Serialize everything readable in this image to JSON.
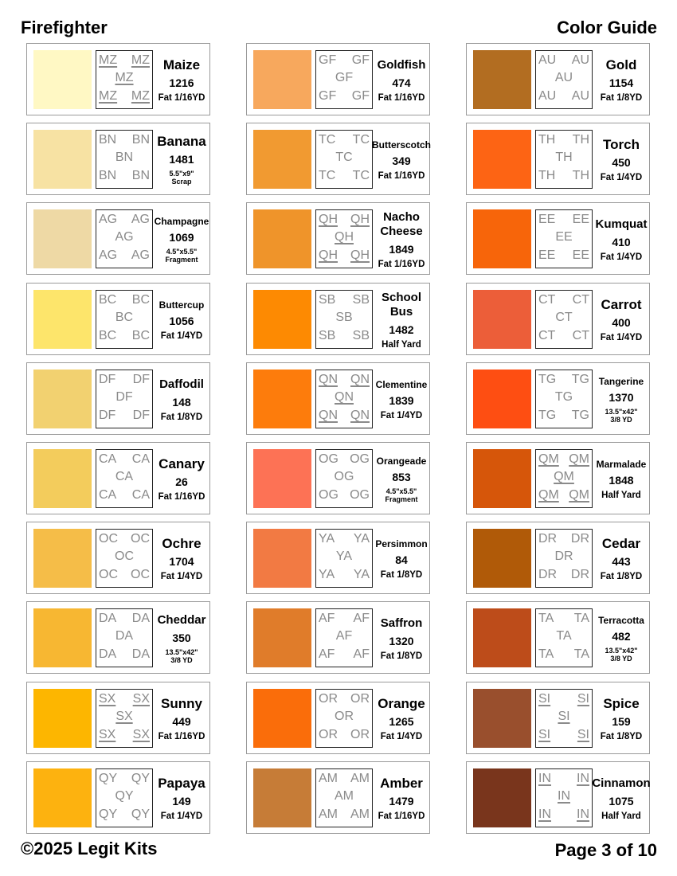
{
  "header": {
    "left": "Firefighter",
    "right": "Color Guide"
  },
  "footer": {
    "left": "©2025 Legit Kits",
    "right": "Page 3 of 10"
  },
  "columns": [
    [
      {
        "code": "MZ",
        "underlined": true,
        "name": [
          "Maize"
        ],
        "number": "1216",
        "detail": [
          "Fat 1/16YD"
        ],
        "color": "#fff8c4"
      },
      {
        "code": "BN",
        "underlined": false,
        "name": [
          "Banana"
        ],
        "number": "1481",
        "detail": [
          "5.5\"x9\"",
          "Scrap"
        ],
        "color": "#f7e2a3"
      },
      {
        "code": "AG",
        "underlined": false,
        "name": [
          "Champagne"
        ],
        "number": "1069",
        "detail": [
          "4.5\"x5.5\"",
          "Fragment"
        ],
        "color": "#eed9a5"
      },
      {
        "code": "BC",
        "underlined": false,
        "name": [
          "Buttercup"
        ],
        "number": "1056",
        "detail": [
          "Fat 1/4YD"
        ],
        "color": "#fde56b"
      },
      {
        "code": "DF",
        "underlined": false,
        "name": [
          "Daffodil"
        ],
        "number": "148",
        "detail": [
          "Fat 1/8YD"
        ],
        "color": "#f2d170"
      },
      {
        "code": "CA",
        "underlined": false,
        "name": [
          "Canary"
        ],
        "number": "26",
        "detail": [
          "Fat 1/16YD"
        ],
        "color": "#f3cc5c"
      },
      {
        "code": "OC",
        "underlined": false,
        "name": [
          "Ochre"
        ],
        "number": "1704",
        "detail": [
          "Fat 1/4YD"
        ],
        "color": "#f5bd48"
      },
      {
        "code": "DA",
        "underlined": false,
        "name": [
          "Cheddar"
        ],
        "number": "350",
        "detail": [
          "13.5\"x42\"",
          "3/8 YD"
        ],
        "color": "#f7b732"
      },
      {
        "code": "SX",
        "underlined": true,
        "name": [
          "Sunny"
        ],
        "number": "449",
        "detail": [
          "Fat 1/16YD"
        ],
        "color": "#fdb600"
      },
      {
        "code": "QY",
        "underlined": false,
        "name": [
          "Papaya"
        ],
        "number": "149",
        "detail": [
          "Fat 1/4YD"
        ],
        "color": "#fdb20f"
      }
    ],
    [
      {
        "code": "GF",
        "underlined": false,
        "name": [
          "Goldfish"
        ],
        "number": "474",
        "detail": [
          "Fat 1/16YD"
        ],
        "color": "#f7a85d"
      },
      {
        "code": "TC",
        "underlined": false,
        "name": [
          "Butterscotch"
        ],
        "number": "349",
        "detail": [
          "Fat 1/16YD"
        ],
        "color": "#f19a31"
      },
      {
        "code": "QH",
        "underlined": true,
        "name": [
          "Nacho",
          "Cheese"
        ],
        "number": "1849",
        "detail": [
          "Fat 1/16YD"
        ],
        "color": "#ef942a"
      },
      {
        "code": "SB",
        "underlined": false,
        "name": [
          "School",
          "Bus"
        ],
        "number": "1482",
        "detail": [
          "Half Yard"
        ],
        "color": "#fd8a02"
      },
      {
        "code": "QN",
        "underlined": true,
        "name": [
          "Clementine"
        ],
        "number": "1839",
        "detail": [
          "Fat 1/4YD"
        ],
        "color": "#fd7c0c"
      },
      {
        "code": "OG",
        "underlined": false,
        "name": [
          "Orangeade"
        ],
        "number": "853",
        "detail": [
          "4.5\"x5.5\"",
          "Fragment"
        ],
        "color": "#fd7255"
      },
      {
        "code": "YA",
        "underlined": false,
        "name": [
          "Persimmon"
        ],
        "number": "84",
        "detail": [
          "Fat 1/8YD"
        ],
        "color": "#f27a43"
      },
      {
        "code": "AF",
        "underlined": false,
        "name": [
          "Saffron"
        ],
        "number": "1320",
        "detail": [
          "Fat 1/8YD"
        ],
        "color": "#e07c2a"
      },
      {
        "code": "OR",
        "underlined": false,
        "name": [
          "Orange"
        ],
        "number": "1265",
        "detail": [
          "Fat 1/4YD"
        ],
        "color": "#fa6d0a"
      },
      {
        "code": "AM",
        "underlined": false,
        "name": [
          "Amber"
        ],
        "number": "1479",
        "detail": [
          "Fat 1/16YD"
        ],
        "color": "#c67c37"
      }
    ],
    [
      {
        "code": "AU",
        "underlined": false,
        "name": [
          "Gold"
        ],
        "number": "1154",
        "detail": [
          "Fat 1/8YD"
        ],
        "color": "#b26d21"
      },
      {
        "code": "TH",
        "underlined": false,
        "name": [
          "Torch"
        ],
        "number": "450",
        "detail": [
          "Fat 1/4YD"
        ],
        "color": "#fd6414"
      },
      {
        "code": "EE",
        "underlined": false,
        "name": [
          "Kumquat"
        ],
        "number": "410",
        "detail": [
          "Fat 1/4YD"
        ],
        "color": "#f7650a"
      },
      {
        "code": "CT",
        "underlined": false,
        "name": [
          "Carrot"
        ],
        "number": "400",
        "detail": [
          "Fat 1/4YD"
        ],
        "color": "#ec5e39"
      },
      {
        "code": "TG",
        "underlined": false,
        "name": [
          "Tangerine"
        ],
        "number": "1370",
        "detail": [
          "13.5\"x42\"",
          "3/8 YD"
        ],
        "color": "#fe4e12"
      },
      {
        "code": "QM",
        "underlined": true,
        "name": [
          "Marmalade"
        ],
        "number": "1848",
        "detail": [
          "Half Yard"
        ],
        "color": "#d6560a"
      },
      {
        "code": "DR",
        "underlined": false,
        "name": [
          "Cedar"
        ],
        "number": "443",
        "detail": [
          "Fat 1/8YD"
        ],
        "color": "#b05a08"
      },
      {
        "code": "TA",
        "underlined": false,
        "name": [
          "Terracotta"
        ],
        "number": "482",
        "detail": [
          "13.5\"x42\"",
          "3/8 YD"
        ],
        "color": "#bd4c1a"
      },
      {
        "code": "SI",
        "underlined": true,
        "name": [
          "Spice"
        ],
        "number": "159",
        "detail": [
          "Fat 1/8YD"
        ],
        "color": "#994f2d"
      },
      {
        "code": "IN",
        "underlined": true,
        "name": [
          "Cinnamon"
        ],
        "number": "1075",
        "detail": [
          "Half Yard"
        ],
        "color": "#79351c"
      }
    ]
  ]
}
